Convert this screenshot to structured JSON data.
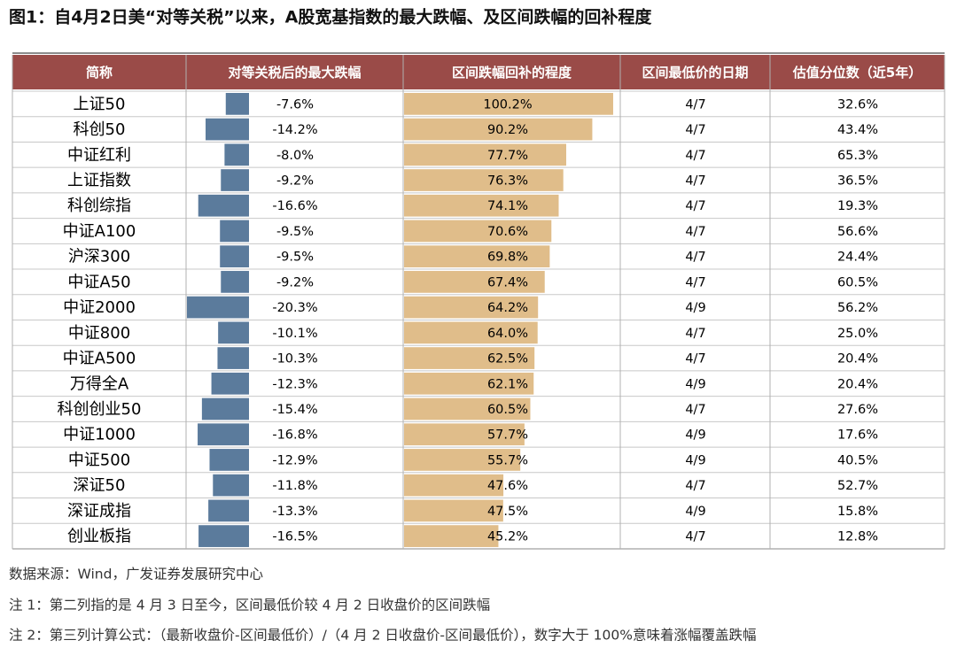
{
  "title": "图1：自4月2日美“对等关税”以来，A股宽基指数的最大跌幅、及区间跌幅的回补程度",
  "table": {
    "headers": [
      "简称",
      "对等关税后的最大跌幅",
      "区间跌幅回补的程度",
      "区间最低价的日期",
      "估值分位数（近5年）"
    ],
    "rows": [
      [
        "上证50",
        "-7.6%",
        "100.2%",
        "4/7",
        "32.6%"
      ],
      [
        "科创50",
        "-14.2%",
        "90.2%",
        "4/7",
        "43.4%"
      ],
      [
        "中证红利",
        "-8.0%",
        "77.7%",
        "4/7",
        "65.3%"
      ],
      [
        "上证指数",
        "-9.2%",
        "76.3%",
        "4/7",
        "36.5%"
      ],
      [
        "科创综指",
        "-16.6%",
        "74.1%",
        "4/7",
        "19.3%"
      ],
      [
        "中证A100",
        "-9.5%",
        "70.6%",
        "4/7",
        "56.6%"
      ],
      [
        "沪深300",
        "-9.5%",
        "69.8%",
        "4/7",
        "24.4%"
      ],
      [
        "中证A50",
        "-9.2%",
        "67.4%",
        "4/7",
        "60.5%"
      ],
      [
        "中证2000",
        "-20.3%",
        "64.2%",
        "4/9",
        "56.2%"
      ],
      [
        "中证800",
        "-10.1%",
        "64.0%",
        "4/7",
        "25.0%"
      ],
      [
        "中证A500",
        "-10.3%",
        "62.5%",
        "4/7",
        "20.4%"
      ],
      [
        "万得全A",
        "-12.3%",
        "62.1%",
        "4/9",
        "20.4%"
      ],
      [
        "科创创业50",
        "-15.4%",
        "60.5%",
        "4/7",
        "27.6%"
      ],
      [
        "中证1000",
        "-16.8%",
        "57.7%",
        "4/9",
        "17.6%"
      ],
      [
        "中证500",
        "-12.9%",
        "55.7%",
        "4/9",
        "40.5%"
      ],
      [
        "深证50",
        "-11.8%",
        "47.6%",
        "4/7",
        "52.7%"
      ],
      [
        "深证成指",
        "-13.3%",
        "47.5%",
        "4/9",
        "15.8%"
      ],
      [
        "创业板指",
        "-16.5%",
        "45.2%",
        "4/7",
        "12.8%"
      ]
    ]
  },
  "notes": [
    "数据来源：Wind，广发证券发展研究中心",
    "注 1：第二列指的是 4 月 3 日至今，区间最低价较 4 月 2 日收盘价的区间跌幅",
    "注 2：第三列计算公式：（最新收盘价-区间最低价）/（4 月 2 日收盘价-区间最低价），数字大于 100%意味着涨幅覆盖跌幅"
  ]
}
